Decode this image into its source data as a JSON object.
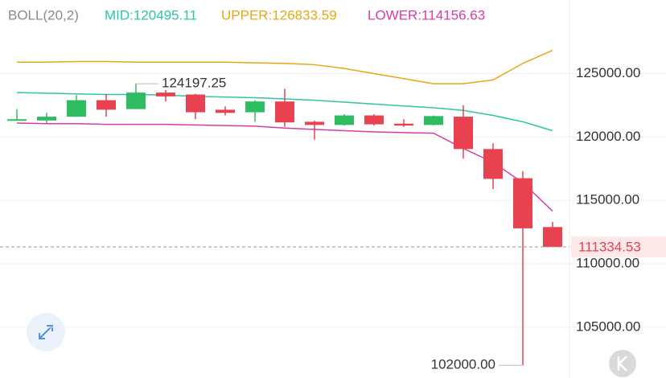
{
  "chart_data": {
    "type": "candlestick",
    "title": "BOLL(20,2)",
    "open": [
      121300,
      121300,
      121600,
      122900,
      122200,
      123500,
      123350,
      122150,
      121950,
      122800,
      121200,
      120950,
      121700,
      121050,
      120950,
      121600,
      119050,
      116750,
      112900
    ],
    "high": [
      122200,
      121900,
      123300,
      123400,
      124197.25,
      123700,
      123400,
      122400,
      122900,
      123800,
      121300,
      121800,
      121800,
      121400,
      121700,
      122500,
      119500,
      117300,
      113300
    ],
    "low": [
      121300,
      121100,
      121600,
      121600,
      122200,
      122800,
      121400,
      121700,
      121200,
      120800,
      119800,
      120900,
      120900,
      120800,
      120900,
      118300,
      115900,
      102000,
      111300
    ],
    "close": [
      121400,
      121600,
      122900,
      122150,
      123500,
      123200,
      121950,
      121900,
      122800,
      121150,
      120950,
      121700,
      121000,
      120900,
      121650,
      119050,
      116700,
      112800,
      111334.53
    ],
    "up_color": "#2dbd60",
    "down_color": "#e8414f",
    "series": [
      {
        "name": "MID:120495.11",
        "color": "#2fc5a3",
        "values": [
          123500,
          123450,
          123400,
          123350,
          123350,
          123300,
          123200,
          123150,
          123100,
          123000,
          122900,
          122750,
          122600,
          122450,
          122300,
          122100,
          121700,
          121200,
          120495.11
        ]
      },
      {
        "name": "UPPER:126833.59",
        "color": "#e6a817",
        "values": [
          125900,
          125900,
          125950,
          125950,
          125900,
          125900,
          125900,
          125900,
          125850,
          125800,
          125700,
          125400,
          125000,
          124600,
          124200,
          124200,
          124500,
          125800,
          126833.59
        ]
      },
      {
        "name": "LOWER:114156.63",
        "color": "#d63ca8",
        "values": [
          121100,
          121050,
          121050,
          121000,
          121000,
          121000,
          120950,
          120900,
          120850,
          120700,
          120600,
          120500,
          120400,
          120350,
          120300,
          119100,
          118000,
          116400,
          114156.63
        ]
      }
    ],
    "ylim": [
      101000,
      130800
    ],
    "yticks": [
      {
        "value": 105000,
        "label": "105000.00"
      },
      {
        "value": 110000,
        "label": "110000.00"
      },
      {
        "value": 115000,
        "label": "115000.00"
      },
      {
        "value": 120000,
        "label": "120000.00"
      },
      {
        "value": 125000,
        "label": "125000.00"
      }
    ],
    "grid": true,
    "last_price": 111334.53,
    "annotations": [
      {
        "index": 4,
        "value": 124197.25
      },
      {
        "index": 17,
        "value": {
          "value": 102000,
          "label": "102000.00"
        }
      }
    ]
  }
}
